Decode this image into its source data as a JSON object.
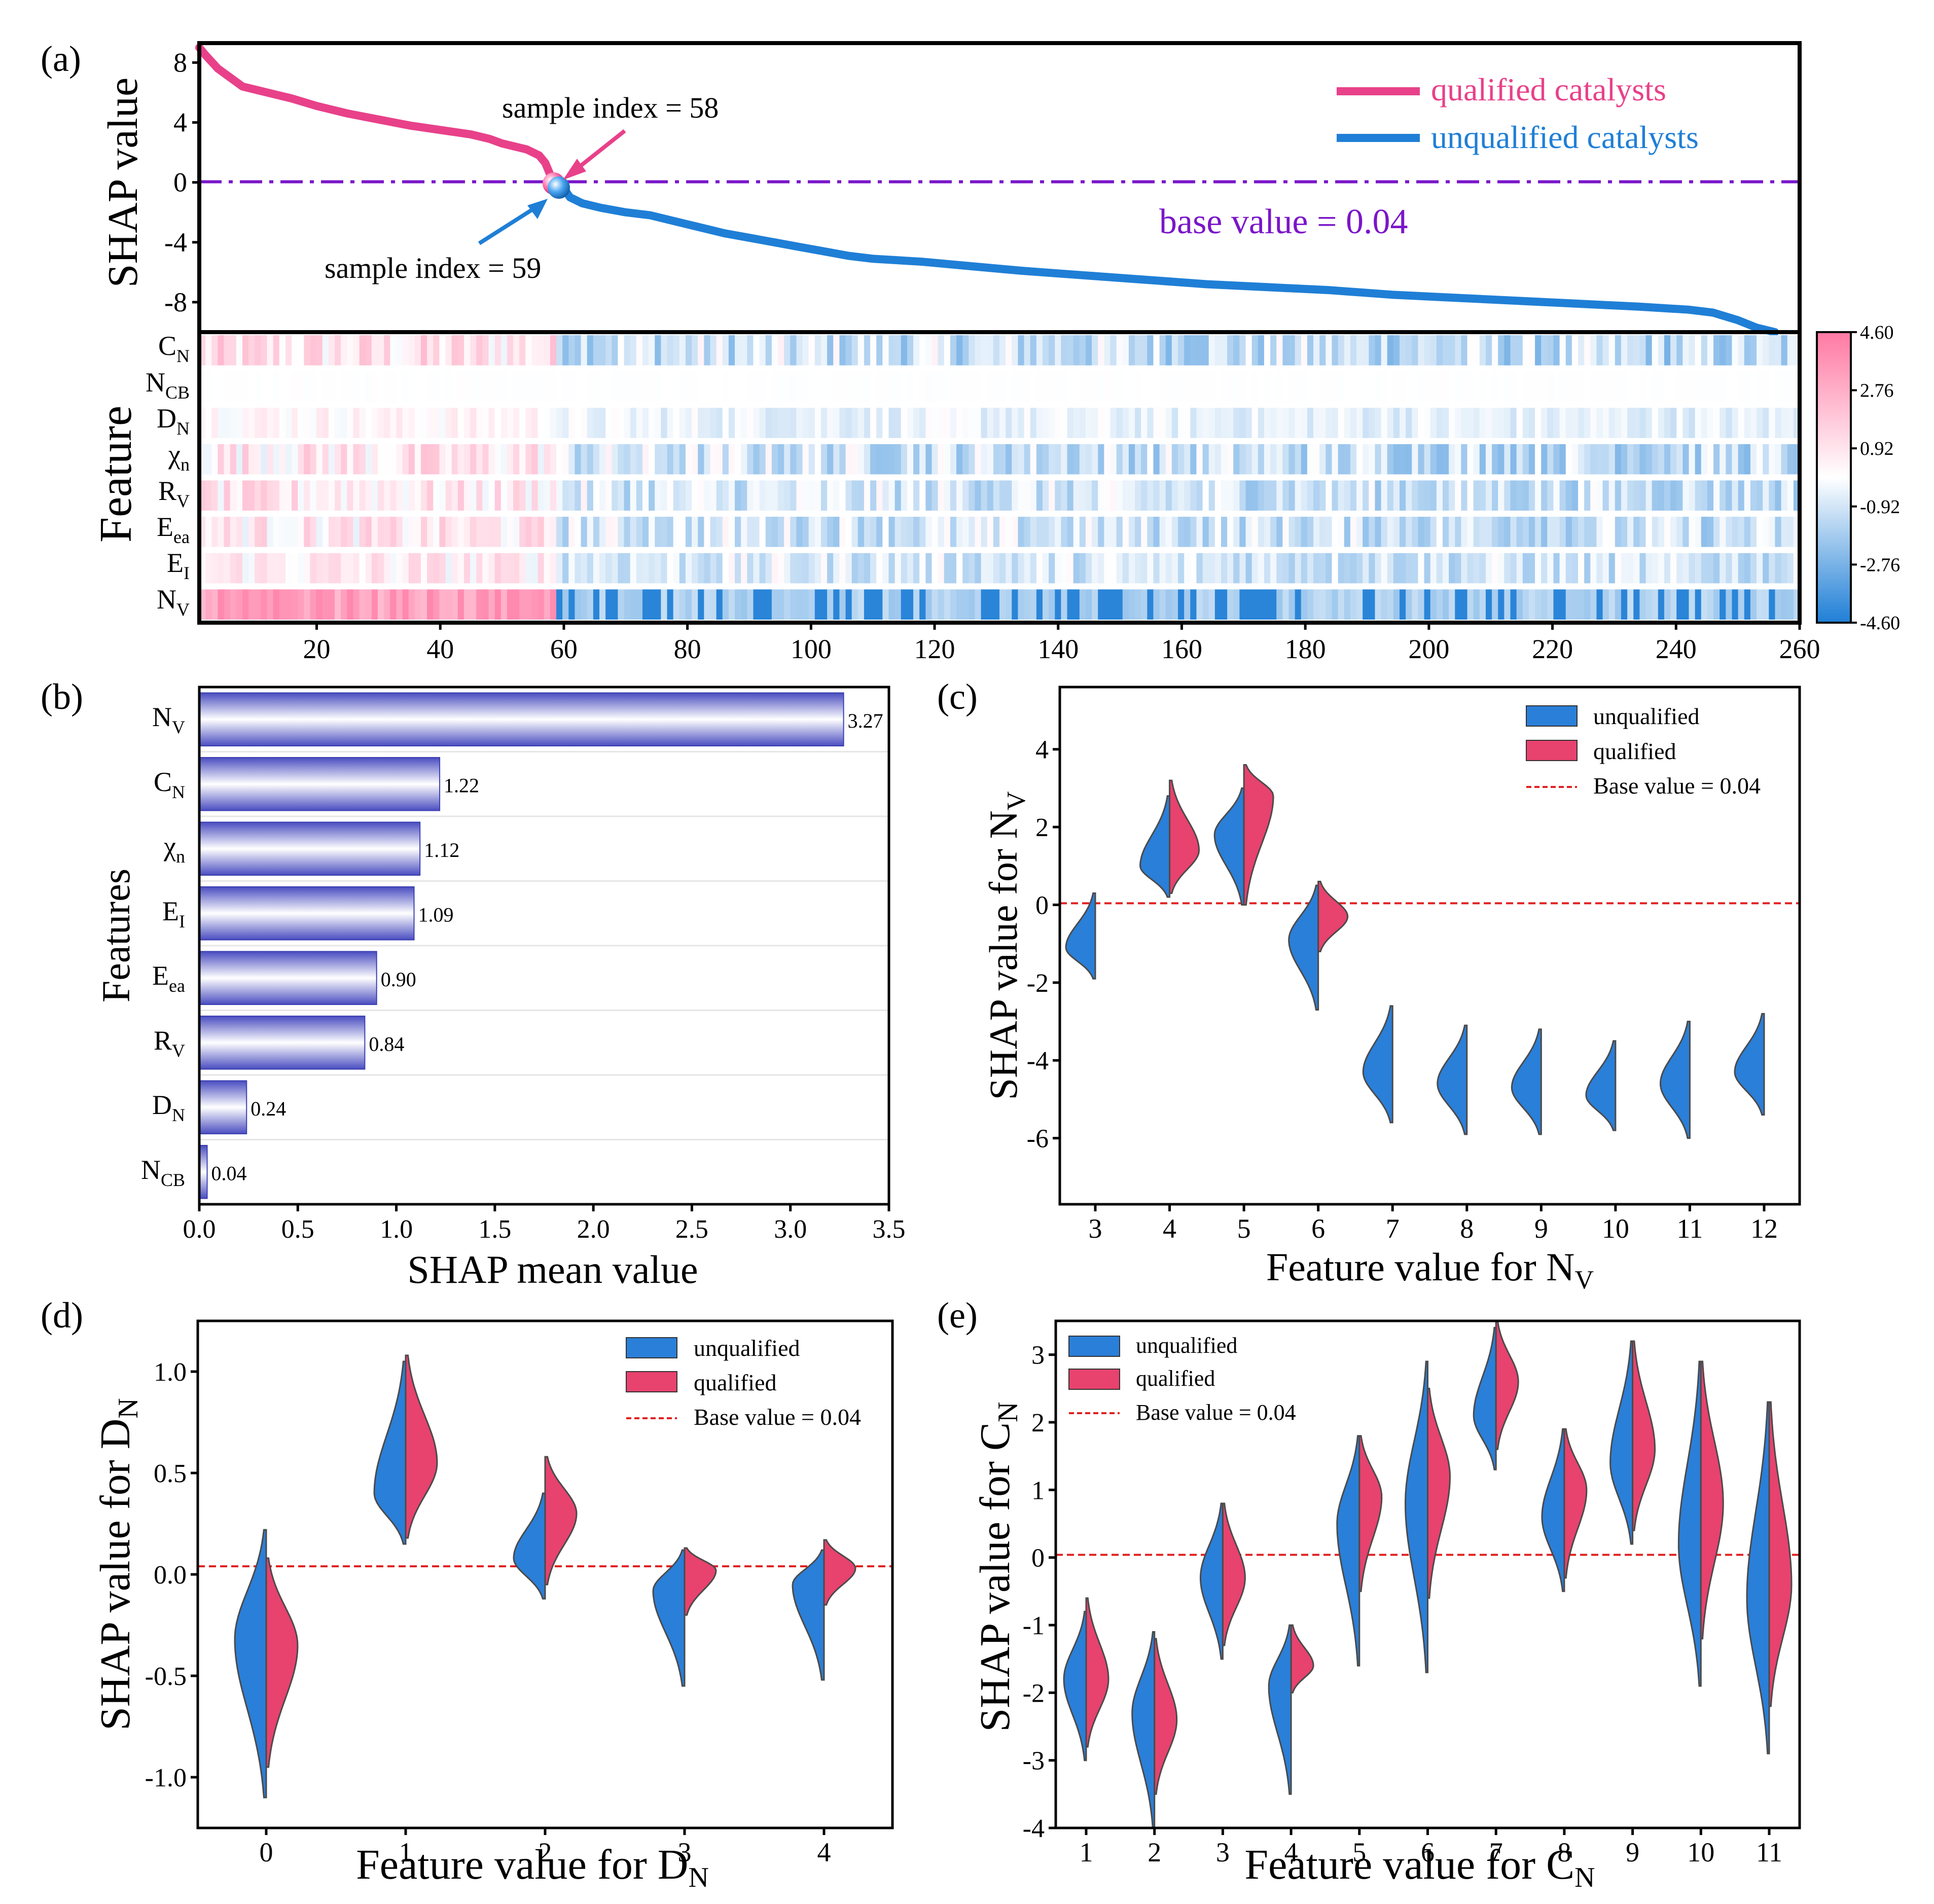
{
  "colors": {
    "qualified": "#e8418a",
    "unqualified": "#1f7fd6",
    "violin_q": "#e8426e",
    "violin_u": "#2a7fd9",
    "base_line_a": "#7a16c9",
    "base_line": "#e02020",
    "bar_dark": "#4a4dc0",
    "bar_light": "#ffffff"
  },
  "chart_data": [
    {
      "panel": "a",
      "panel_label": "(a)",
      "type": "line",
      "ylabel": "SHAP value",
      "ylim": [
        -10,
        9.3
      ],
      "yticks": [
        "8",
        "4",
        "0",
        "-4",
        "-8"
      ],
      "xlim": [
        1,
        260
      ],
      "base_value_label": "base value = 0.04",
      "base_value": 0.04,
      "legend": [
        "qualified catalysts",
        "unqualified catalysts"
      ],
      "annotations": [
        "sample index = 58",
        "sample index = 59"
      ],
      "qualified_anchors": [
        [
          1,
          9.0
        ],
        [
          2,
          8.5
        ],
        [
          4,
          7.6
        ],
        [
          6,
          7.0
        ],
        [
          8,
          6.4
        ],
        [
          12,
          6.0
        ],
        [
          16,
          5.6
        ],
        [
          20,
          5.1
        ],
        [
          25,
          4.6
        ],
        [
          30,
          4.2
        ],
        [
          35,
          3.8
        ],
        [
          40,
          3.5
        ],
        [
          45,
          3.2
        ],
        [
          48,
          2.9
        ],
        [
          50,
          2.6
        ],
        [
          52,
          2.4
        ],
        [
          54,
          2.2
        ],
        [
          56,
          1.8
        ],
        [
          57,
          1.3
        ],
        [
          58,
          0.3
        ]
      ],
      "unqualified_anchors": [
        [
          59,
          -0.1
        ],
        [
          60,
          -0.4
        ],
        [
          61,
          -1.0
        ],
        [
          63,
          -1.4
        ],
        [
          66,
          -1.7
        ],
        [
          70,
          -2.0
        ],
        [
          74,
          -2.2
        ],
        [
          78,
          -2.6
        ],
        [
          82,
          -3.0
        ],
        [
          86,
          -3.4
        ],
        [
          90,
          -3.7
        ],
        [
          94,
          -4.0
        ],
        [
          98,
          -4.3
        ],
        [
          102,
          -4.6
        ],
        [
          106,
          -4.9
        ],
        [
          110,
          -5.1
        ],
        [
          118,
          -5.3
        ],
        [
          126,
          -5.6
        ],
        [
          134,
          -5.9
        ],
        [
          144,
          -6.2
        ],
        [
          154,
          -6.5
        ],
        [
          164,
          -6.8
        ],
        [
          174,
          -7.0
        ],
        [
          184,
          -7.2
        ],
        [
          194,
          -7.5
        ],
        [
          204,
          -7.7
        ],
        [
          214,
          -7.9
        ],
        [
          224,
          -8.1
        ],
        [
          234,
          -8.3
        ],
        [
          242,
          -8.5
        ],
        [
          246,
          -8.7
        ],
        [
          250,
          -9.2
        ],
        [
          253,
          -9.7
        ],
        [
          256,
          -10.0
        ]
      ]
    },
    {
      "panel": "a-heatmap",
      "type": "heatmap",
      "ylabel": "Feature",
      "rows": [
        "C_N",
        "N_CB",
        "D_N",
        "χ_n",
        "R_V",
        "E_ea",
        "E_I",
        "N_V"
      ],
      "xticks": [
        "20",
        "40",
        "60",
        "80",
        "100",
        "120",
        "140",
        "160",
        "180",
        "200",
        "220",
        "240",
        "260"
      ],
      "colorbar_ticks": [
        "4.60",
        "2.76",
        "0.92",
        "-0.92",
        "-2.76",
        "-4.60"
      ],
      "value_range": [
        -4.6,
        4.6
      ],
      "samples": 260
    },
    {
      "panel": "b",
      "panel_label": "(b)",
      "type": "bar",
      "categories": [
        "N_V",
        "C_N",
        "χ_n",
        "E_I",
        "E_ea",
        "R_V",
        "D_N",
        "N_CB"
      ],
      "values": [
        3.27,
        1.22,
        1.12,
        1.09,
        0.9,
        0.84,
        0.24,
        0.04
      ],
      "value_labels": [
        "3.27",
        "1.22",
        "1.12",
        "1.09",
        "0.90",
        "0.84",
        "0.24",
        "0.04"
      ],
      "xlabel": "SHAP mean value",
      "ylabel": "Features",
      "xlim": [
        0,
        3.5
      ],
      "xticks": [
        "0.0",
        "0.5",
        "1.0",
        "1.5",
        "2.0",
        "2.5",
        "3.0",
        "3.5"
      ]
    },
    {
      "panel": "c",
      "panel_label": "(c)",
      "type": "violin",
      "xlabel": "Feature value for N_V",
      "ylabel": "SHAP value for N_V",
      "ylim": [
        -7.7,
        5.6
      ],
      "yticks": [
        "4",
        "2",
        "0",
        "-2",
        "-4",
        "-6"
      ],
      "categories": [
        "3",
        "4",
        "5",
        "6",
        "7",
        "8",
        "9",
        "10",
        "11",
        "12"
      ],
      "legend": [
        "unqualified",
        "qualified",
        "Base value = 0.04"
      ],
      "base_value": 0.04,
      "unqualified": [
        [
          -1.9,
          0.3,
          -1.1
        ],
        [
          0.2,
          2.8,
          1.0
        ],
        [
          0.0,
          3.0,
          1.8
        ],
        [
          -2.7,
          0.5,
          -0.9
        ],
        [
          -5.6,
          -2.6,
          -4.3
        ],
        [
          -5.9,
          -3.1,
          -4.6
        ],
        [
          -5.9,
          -3.2,
          -4.7
        ],
        [
          -5.8,
          -3.5,
          -4.9
        ],
        [
          -6.0,
          -3.0,
          -4.6
        ],
        [
          -5.4,
          -2.8,
          -4.3
        ]
      ],
      "qualified": [
        null,
        [
          0.3,
          3.2,
          1.4
        ],
        [
          0.0,
          3.6,
          2.8
        ],
        [
          -1.2,
          0.6,
          -0.3
        ],
        null,
        null,
        null,
        null,
        null,
        null
      ]
    },
    {
      "panel": "d",
      "panel_label": "(d)",
      "type": "violin",
      "xlabel": "Feature value for D_N",
      "ylabel": "SHAP value for D_N",
      "ylim": [
        -1.25,
        1.25
      ],
      "yticks": [
        "1.0",
        "0.5",
        "0.0",
        "-0.5",
        "-1.0"
      ],
      "categories": [
        "0",
        "1",
        "2",
        "3",
        "4"
      ],
      "legend": [
        "unqualified",
        "qualified",
        "Base value = 0.04"
      ],
      "base_value": 0.04,
      "unqualified": [
        [
          -1.1,
          0.22,
          -0.32
        ],
        [
          0.15,
          1.05,
          0.4
        ],
        [
          -0.12,
          0.4,
          0.08
        ],
        [
          -0.55,
          0.12,
          -0.08
        ],
        [
          -0.52,
          0.12,
          -0.05
        ]
      ],
      "qualified": [
        [
          -0.95,
          0.08,
          -0.35
        ],
        [
          0.18,
          1.08,
          0.55
        ],
        [
          -0.05,
          0.58,
          0.3
        ],
        [
          -0.2,
          0.13,
          0.02
        ],
        [
          -0.15,
          0.17,
          0.03
        ]
      ]
    },
    {
      "panel": "e",
      "panel_label": "(e)",
      "type": "violin",
      "xlabel": "Feature value for C_N",
      "ylabel": "SHAP value for C_N",
      "ylim": [
        -4.0,
        3.5
      ],
      "yticks": [
        "3",
        "2",
        "1",
        "0",
        "-1",
        "-2",
        "-3",
        "-4"
      ],
      "categories": [
        "1",
        "2",
        "3",
        "4",
        "5",
        "6",
        "7",
        "8",
        "9",
        "10",
        "11"
      ],
      "legend": [
        "unqualified",
        "qualified",
        "Base value = 0.04"
      ],
      "base_value": 0.04,
      "unqualified": [
        [
          -3.0,
          -0.8,
          -1.8
        ],
        [
          -4.0,
          -1.1,
          -2.3
        ],
        [
          -1.5,
          0.8,
          -0.3
        ],
        [
          -3.5,
          -1.0,
          -1.9
        ],
        [
          -1.6,
          1.8,
          0.5
        ],
        [
          -1.7,
          2.9,
          0.8
        ],
        [
          1.3,
          3.4,
          2.1
        ],
        [
          -0.5,
          1.9,
          0.6
        ],
        [
          0.2,
          3.2,
          1.4
        ],
        [
          -1.9,
          2.9,
          0.2
        ],
        [
          -2.9,
          2.3,
          -0.6
        ]
      ],
      "qualified": [
        [
          -2.8,
          -0.6,
          -1.8
        ],
        [
          -3.5,
          -1.2,
          -2.4
        ],
        [
          -1.3,
          0.8,
          -0.3
        ],
        [
          -2.0,
          -1.0,
          -1.6
        ],
        [
          -0.5,
          1.8,
          0.9
        ],
        [
          -0.6,
          2.5,
          1.2
        ],
        [
          1.6,
          3.5,
          2.6
        ],
        [
          -0.3,
          1.9,
          1.0
        ],
        [
          0.4,
          3.2,
          1.6
        ],
        [
          -1.2,
          2.9,
          0.8
        ],
        [
          -2.2,
          2.3,
          -0.4
        ]
      ]
    }
  ]
}
